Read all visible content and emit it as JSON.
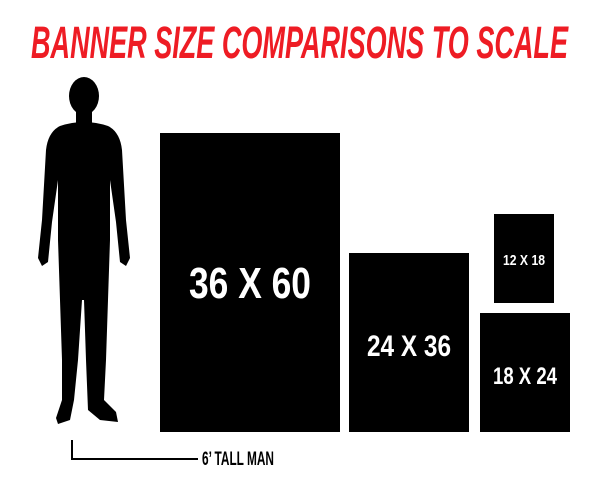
{
  "title": "BANNER SIZE COMPARISONS TO SCALE",
  "title_color": "#ee1c24",
  "man_label": "6’ TALL MAN",
  "banners": [
    {
      "label": "36 X 60",
      "width_in": 36,
      "height_in": 60
    },
    {
      "label": "24 X 36",
      "width_in": 24,
      "height_in": 36
    },
    {
      "label": "12 X 18",
      "width_in": 12,
      "height_in": 18
    },
    {
      "label": "18 X 24",
      "width_in": 18,
      "height_in": 24
    }
  ]
}
